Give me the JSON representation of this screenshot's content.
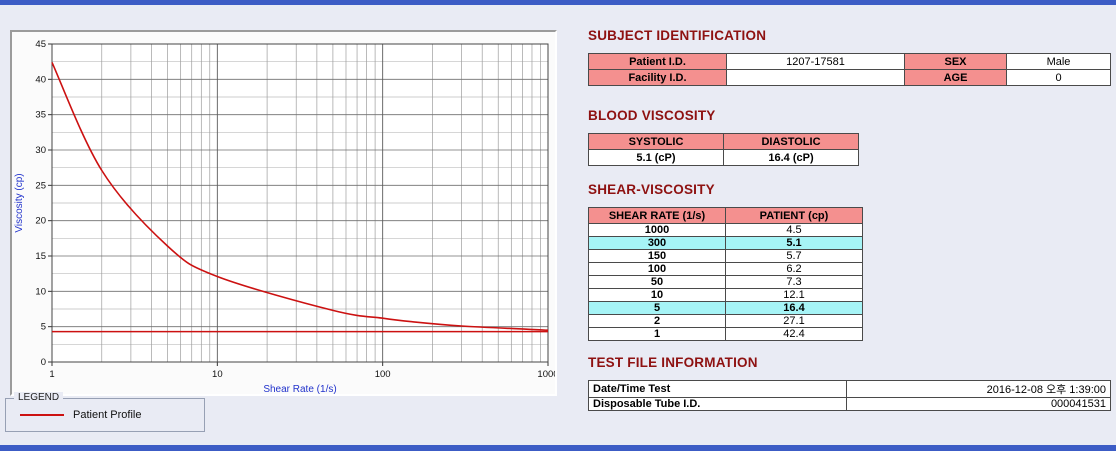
{
  "window": {
    "background_color": "#e9ebf4",
    "border_color": "#3c5cc5"
  },
  "chart": {
    "legend_title": "LEGEND",
    "legend_entries": [
      "Patient Profile"
    ]
  },
  "chart_data": {
    "type": "line",
    "title": "",
    "xlabel": "Shear Rate (1/s)",
    "ylabel": "Viscosity (cp)",
    "xscale": "log",
    "xlim": [
      1,
      1000
    ],
    "ylim": [
      0,
      45
    ],
    "x_major_ticks": [
      1,
      10,
      100,
      1000
    ],
    "y_major_ticks": [
      0,
      5,
      10,
      15,
      20,
      25,
      30,
      35,
      40,
      45
    ],
    "grid": true,
    "legend_position": "bottom-left-outside",
    "series": [
      {
        "name": "Patient Profile",
        "color": "#cc1111",
        "x": [
          1,
          2,
          5,
          10,
          50,
          100,
          150,
          300,
          1000
        ],
        "y": [
          42.4,
          27.1,
          16.4,
          12.1,
          7.3,
          6.2,
          5.7,
          5.1,
          4.5
        ]
      }
    ],
    "reference_line": {
      "y": 4.3,
      "color": "#cc1111"
    }
  },
  "subject_identification": {
    "title": "SUBJECT IDENTIFICATION",
    "rows": [
      {
        "label1": "Patient I.D.",
        "value1": "1207-17581",
        "label2": "SEX",
        "value2": "Male"
      },
      {
        "label1": "Facility I.D.",
        "value1": "",
        "label2": "AGE",
        "value2": "0"
      }
    ]
  },
  "blood_viscosity": {
    "title": "BLOOD VISCOSITY",
    "headers": [
      "SYSTOLIC",
      "DIASTOLIC"
    ],
    "values": [
      "5.1 (cP)",
      "16.4 (cP)"
    ]
  },
  "shear_viscosity": {
    "title": "SHEAR-VISCOSITY",
    "headers": [
      "SHEAR RATE (1/s)",
      "PATIENT (cp)"
    ],
    "rows": [
      {
        "rate": "1000",
        "value": "4.5",
        "highlight": false
      },
      {
        "rate": "300",
        "value": "5.1",
        "highlight": true
      },
      {
        "rate": "150",
        "value": "5.7",
        "highlight": false
      },
      {
        "rate": "100",
        "value": "6.2",
        "highlight": false
      },
      {
        "rate": "50",
        "value": "7.3",
        "highlight": false
      },
      {
        "rate": "10",
        "value": "12.1",
        "highlight": false
      },
      {
        "rate": "5",
        "value": "16.4",
        "highlight": true
      },
      {
        "rate": "2",
        "value": "27.1",
        "highlight": false
      },
      {
        "rate": "1",
        "value": "42.4",
        "highlight": false
      }
    ]
  },
  "test_file_information": {
    "title": "TEST FILE INFORMATION",
    "rows": [
      {
        "label": "Date/Time Test",
        "value": "2016-12-08 오후 1:39:00"
      },
      {
        "label": "Disposable Tube I.D.",
        "value": "000041531"
      }
    ]
  }
}
